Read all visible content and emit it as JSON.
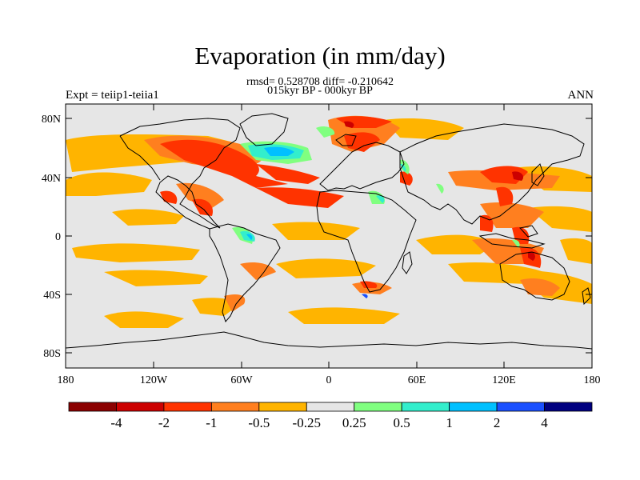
{
  "title": "Evaporation (in mm/day)",
  "stats_line": "rmsd= 0.528708 diff= -0.210642",
  "period_line": "015kyr BP - 000kyr BP",
  "experiment": "Expt = teiip1-teiia1",
  "season": "ANN",
  "lat_ticks": [
    "80N",
    "40N",
    "0",
    "40S",
    "80S"
  ],
  "lon_ticks": [
    "180",
    "120W",
    "60W",
    "0",
    "60E",
    "120E",
    "180"
  ],
  "colorbar": {
    "colors": [
      "#8b0000",
      "#cc0000",
      "#ff3300",
      "#ff7f1f",
      "#ffb400",
      "#e6e6e6",
      "#80ff80",
      "#33eecc",
      "#00c0ff",
      "#1a50ff",
      "#000080"
    ],
    "labels": [
      "-4",
      "-2",
      "-1",
      "-0.5",
      "-0.25",
      "0.25",
      "0.5",
      "1",
      "2",
      "4"
    ]
  },
  "map_colors": {
    "background": "#e6e6e6",
    "coast": "#000000",
    "neg_strong": "#ff3300",
    "neg_medium": "#ff7f1f",
    "neg_weak": "#ffb400",
    "pos_weak": "#80ff80",
    "pos_medium": "#33eecc",
    "pos_strong": "#00c0ff"
  }
}
